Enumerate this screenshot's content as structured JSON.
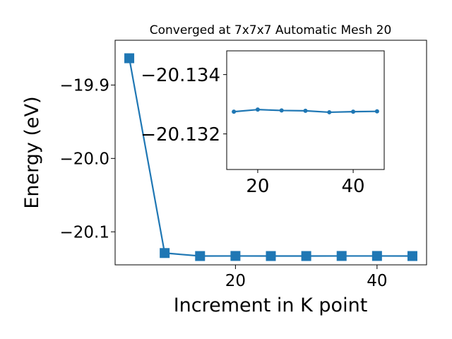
{
  "chart_data": [
    {
      "type": "line",
      "title": "Converged at 7x7x7 Automatic Mesh 20",
      "xlabel": "Increment in K point",
      "ylabel": "Energy (eV)",
      "xlim": [
        3.0,
        47.0
      ],
      "ylim": [
        -20.145,
        -19.839
      ],
      "x_ticks": [
        20,
        40
      ],
      "x_tick_labels": [
        "20",
        "40"
      ],
      "y_ticks": [
        -19.9,
        -20.0,
        -20.1
      ],
      "y_tick_labels": [
        "−19.9",
        "−20.0",
        "−20.1"
      ],
      "grid": false,
      "color": "#1f77b4",
      "marker": "square",
      "series": [
        {
          "x": [
            5,
            10,
            15,
            20,
            25,
            30,
            35,
            40,
            45
          ],
          "y": [
            -19.8635,
            -20.1289,
            -20.133,
            -20.1329,
            -20.133,
            -20.133,
            -20.1329,
            -20.1329,
            -20.133
          ]
        }
      ]
    },
    {
      "type": "line",
      "title": "",
      "xlabel": "",
      "ylabel": "",
      "xlim": [
        13.5,
        46.5
      ],
      "ylim": [
        -20.1308,
        -20.1348
      ],
      "x_ticks": [
        20,
        40
      ],
      "x_tick_labels": [
        "20",
        "40"
      ],
      "y_ticks": [
        -20.134,
        -20.132
      ],
      "y_tick_labels": [
        "−20.134",
        "−20.132"
      ],
      "grid": false,
      "color": "#1f77b4",
      "marker": "circle",
      "series": [
        {
          "x": [
            15,
            20,
            25,
            30,
            35,
            40,
            45
          ],
          "y": [
            -20.13275,
            -20.13282,
            -20.13279,
            -20.13278,
            -20.13273,
            -20.13275,
            -20.13276
          ]
        }
      ]
    }
  ]
}
